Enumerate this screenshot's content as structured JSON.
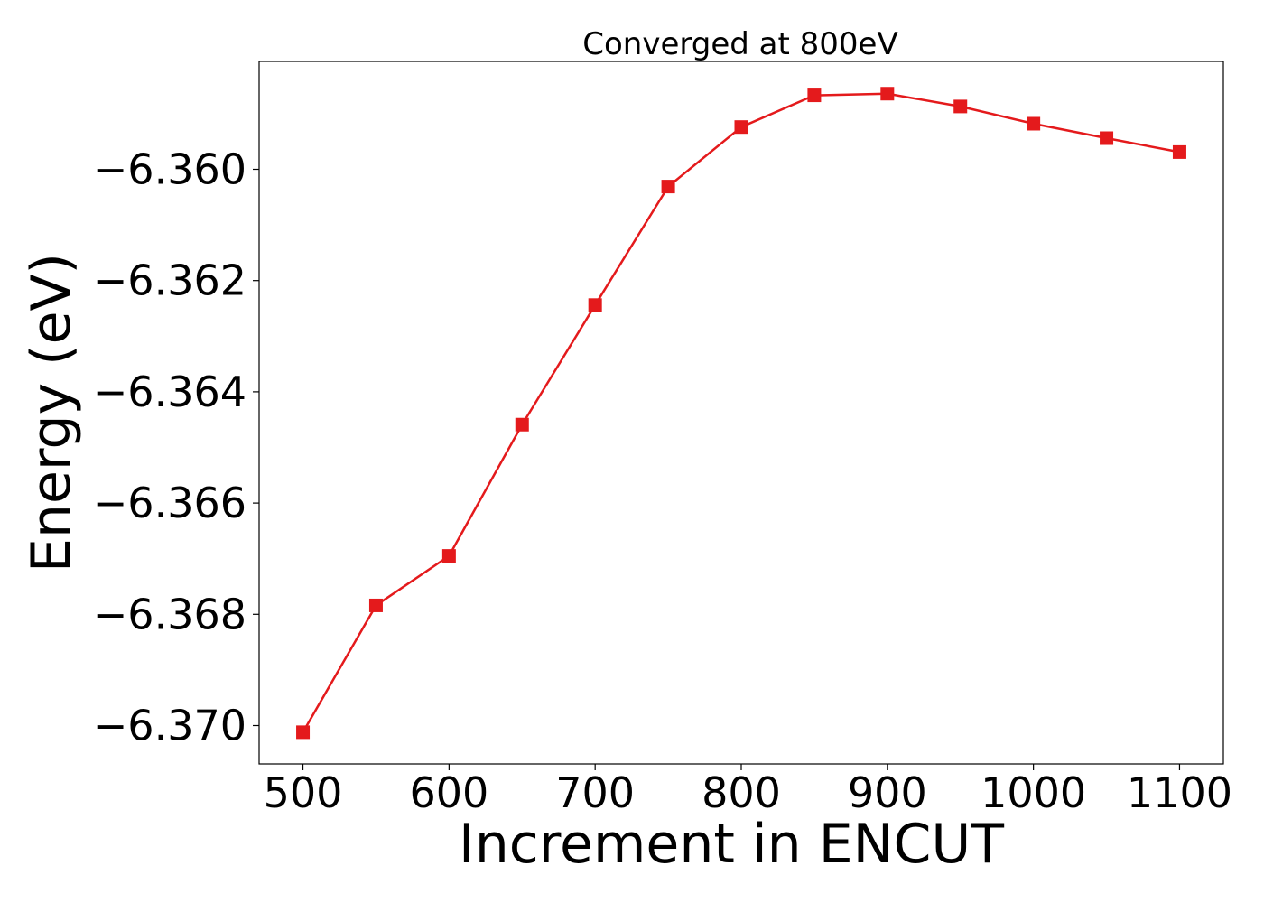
{
  "chart_data": {
    "type": "line",
    "title": "Converged at 800eV",
    "xlabel": "Increment in ENCUT",
    "ylabel": "Energy (eV)",
    "x": [
      500,
      550,
      600,
      650,
      700,
      750,
      800,
      850,
      900,
      950,
      1000,
      1050,
      1100
    ],
    "series": [
      {
        "values": [
          -6.37012,
          -6.36784,
          -6.36695,
          -6.36459,
          -6.36244,
          -6.36031,
          -6.35924,
          -6.35867,
          -6.35864,
          -6.35887,
          -6.35918,
          -6.35944,
          -6.35969
        ],
        "color": "#e41a1c",
        "marker": "square"
      }
    ],
    "xlim": [
      470,
      1130
    ],
    "ylim": [
      -6.37069,
      -6.35806
    ],
    "xticks": [
      500,
      600,
      700,
      800,
      900,
      1000,
      1100
    ],
    "xtick_labels": [
      "500",
      "600",
      "700",
      "800",
      "900",
      "1000",
      "1100"
    ],
    "yticks": [
      -6.37,
      -6.368,
      -6.366,
      -6.364,
      -6.362,
      -6.36
    ],
    "ytick_labels": [
      "−6.370",
      "−6.368",
      "−6.366",
      "−6.364",
      "−6.362",
      "−6.360"
    ],
    "grid": false,
    "legend": "none"
  }
}
